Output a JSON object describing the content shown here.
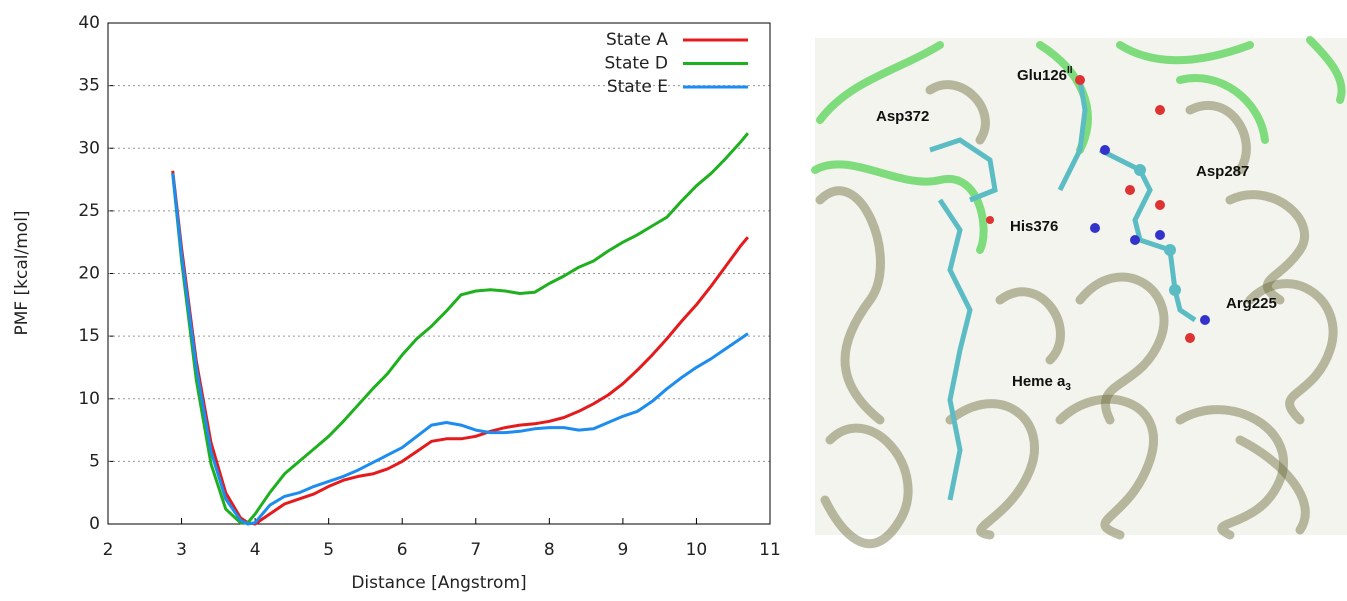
{
  "chart_data": {
    "type": "line",
    "xlabel": "Distance [Angstrom]",
    "ylabel": "PMF [kcal/mol]",
    "x": [
      2.88,
      3.0,
      3.2,
      3.4,
      3.6,
      3.8,
      3.9,
      4.0,
      4.2,
      4.4,
      4.6,
      4.8,
      5.0,
      5.2,
      5.4,
      5.6,
      5.8,
      6.0,
      6.2,
      6.4,
      6.6,
      6.8,
      7.0,
      7.2,
      7.4,
      7.6,
      7.8,
      8.0,
      8.2,
      8.4,
      8.6,
      8.8,
      9.0,
      9.2,
      9.4,
      9.6,
      9.8,
      10.0,
      10.2,
      10.4,
      10.6,
      10.7
    ],
    "series": [
      {
        "name": "State A",
        "color": "#e41a1c",
        "values": [
          28.2,
          22,
          13,
          6.5,
          2.5,
          0.5,
          0.1,
          0,
          0.8,
          1.6,
          2.0,
          2.4,
          3.0,
          3.5,
          3.8,
          4.0,
          4.4,
          5.0,
          5.8,
          6.6,
          6.8,
          6.8,
          7.0,
          7.4,
          7.7,
          7.9,
          8.0,
          8.2,
          8.5,
          9.0,
          9.6,
          10.3,
          11.2,
          12.3,
          13.5,
          14.8,
          16.2,
          17.5,
          19.0,
          20.6,
          22.2,
          22.9
        ]
      },
      {
        "name": "State D",
        "color": "#1fb01f",
        "values": [
          28,
          21,
          11.5,
          4.8,
          1.2,
          0.1,
          0.1,
          0.8,
          2.5,
          4.0,
          5.0,
          6.0,
          7.0,
          8.2,
          9.5,
          10.8,
          12.0,
          13.5,
          14.8,
          15.8,
          17.0,
          18.3,
          18.6,
          18.7,
          18.6,
          18.4,
          18.5,
          19.2,
          19.8,
          20.5,
          21.0,
          21.8,
          22.5,
          23.1,
          23.8,
          24.5,
          25.8,
          27.0,
          28.0,
          29.2,
          30.5,
          31.2
        ]
      },
      {
        "name": "State E",
        "color": "#1c8cf0",
        "values": [
          28,
          21.5,
          12.5,
          5.8,
          2.0,
          0.3,
          0,
          0.1,
          1.5,
          2.2,
          2.5,
          3.0,
          3.4,
          3.8,
          4.3,
          4.9,
          5.5,
          6.1,
          7.0,
          7.9,
          8.1,
          7.9,
          7.5,
          7.3,
          7.3,
          7.4,
          7.6,
          7.7,
          7.7,
          7.5,
          7.6,
          8.1,
          8.6,
          9.0,
          9.8,
          10.8,
          11.7,
          12.5,
          13.2,
          14.0,
          14.8,
          15.2
        ]
      }
    ],
    "xlim": [
      2,
      11
    ],
    "xticks": [
      2,
      3,
      4,
      5,
      6,
      7,
      8,
      9,
      10,
      11
    ],
    "ylim": [
      0,
      40
    ],
    "yticks": [
      0,
      5,
      10,
      15,
      20,
      25,
      30,
      35,
      40
    ],
    "grid": true,
    "legend": "upper right"
  },
  "image_labels": {
    "glu": "Glu126",
    "glu_sup": "II",
    "asp372": "Asp372",
    "asp287": "Asp287",
    "his": "His376",
    "arg": "Arg225",
    "heme": "Heme a",
    "heme_sub": "3"
  }
}
